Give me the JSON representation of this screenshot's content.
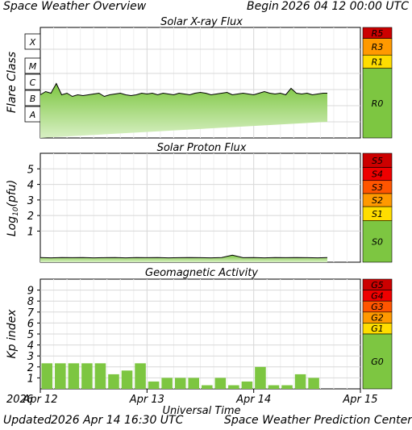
{
  "header": {
    "title": "Space Weather Overview",
    "begin_label": "Begin",
    "begin_value": "2026 04 12 00:00 UTC"
  },
  "footer": {
    "updated_label": "Updated",
    "updated_value": "2026 Apr 14 16:30 UTC",
    "credit": "Space Weather Prediction Center"
  },
  "x_axis": {
    "title": "Universal Time",
    "year": "2026",
    "ticks": [
      "Apr 12",
      "Apr 13",
      "Apr 14",
      "Apr 15"
    ]
  },
  "colors": {
    "green": "#7dc641",
    "green_light": "#d8f0c4",
    "yellow": "#ffdd00",
    "orange": "#ff9900",
    "red_orange": "#ff5500",
    "red": "#ee0000",
    "dark_red": "#cc0000",
    "grid": "#d8d8d8",
    "line": "#000000"
  },
  "chart_data": [
    {
      "type": "line",
      "title": "Solar X-ray Flux",
      "ylabel": "Flare Class",
      "y_scale": "log",
      "y_categories": [
        "A",
        "B",
        "C",
        "M",
        "X"
      ],
      "x_range_days": [
        0,
        3
      ],
      "series": [
        {
          "x": [
            0.0,
            0.05,
            0.1,
            0.15,
            0.2,
            0.25,
            0.3,
            0.35,
            0.4,
            0.45,
            0.5,
            0.55,
            0.6,
            0.65,
            0.7,
            0.75,
            0.8,
            0.85,
            0.9,
            0.95,
            1.0,
            1.05,
            1.1,
            1.15,
            1.2,
            1.25,
            1.3,
            1.35,
            1.4,
            1.45,
            1.5,
            1.55,
            1.6,
            1.65,
            1.7,
            1.75,
            1.8,
            1.85,
            1.9,
            1.95,
            2.0,
            2.05,
            2.1,
            2.15,
            2.2,
            2.25,
            2.3,
            2.35,
            2.4,
            2.45,
            2.5,
            2.55,
            2.6,
            2.65,
            2.69
          ],
          "y": [
            1.2,
            1.4,
            1.3,
            1.9,
            1.2,
            1.3,
            1.1,
            1.2,
            1.15,
            1.2,
            1.25,
            1.3,
            1.1,
            1.2,
            1.25,
            1.3,
            1.2,
            1.15,
            1.2,
            1.3,
            1.25,
            1.3,
            1.2,
            1.3,
            1.25,
            1.2,
            1.3,
            1.25,
            1.2,
            1.3,
            1.35,
            1.3,
            1.2,
            1.25,
            1.3,
            1.35,
            1.2,
            1.25,
            1.3,
            1.25,
            1.2,
            1.3,
            1.4,
            1.3,
            1.25,
            1.3,
            1.2,
            1.6,
            1.3,
            1.25,
            1.3,
            1.2,
            1.25,
            1.3,
            1.3
          ]
        }
      ],
      "scale": {
        "labels": [
          "R5",
          "R3",
          "R1",
          "R0"
        ],
        "colors": [
          "#cc0000",
          "#ff9900",
          "#ffdd00",
          "#7dc641"
        ]
      }
    },
    {
      "type": "line",
      "title": "Solar Proton Flux",
      "ylabel": "Log10(pfu)",
      "ylabel_main": "Log",
      "ylabel_sub": "10",
      "ylabel_paren": "(pfu)",
      "y_range": [
        -1,
        6
      ],
      "y_ticks": [
        1,
        2,
        3,
        4,
        5
      ],
      "x_range_days": [
        0,
        3
      ],
      "series": [
        {
          "x": [
            0.0,
            0.1,
            0.2,
            0.3,
            0.4,
            0.5,
            0.6,
            0.7,
            0.8,
            0.9,
            1.0,
            1.1,
            1.2,
            1.3,
            1.4,
            1.5,
            1.6,
            1.7,
            1.8,
            1.9,
            2.0,
            2.1,
            2.2,
            2.3,
            2.4,
            2.5,
            2.6,
            2.69
          ],
          "y": [
            -0.7,
            -0.72,
            -0.7,
            -0.71,
            -0.7,
            -0.72,
            -0.71,
            -0.7,
            -0.72,
            -0.7,
            -0.71,
            -0.7,
            -0.72,
            -0.71,
            -0.7,
            -0.71,
            -0.72,
            -0.7,
            -0.55,
            -0.71,
            -0.7,
            -0.72,
            -0.7,
            -0.71,
            -0.7,
            -0.71,
            -0.72,
            -0.7
          ]
        }
      ],
      "scale": {
        "labels": [
          "S5",
          "S4",
          "S3",
          "S2",
          "S1",
          "S0"
        ],
        "colors": [
          "#cc0000",
          "#ee0000",
          "#ff5500",
          "#ff9900",
          "#ffdd00",
          "#7dc641"
        ]
      }
    },
    {
      "type": "bar",
      "title": "Geomagnetic Activity",
      "ylabel": "Kp index",
      "y_range": [
        0,
        10
      ],
      "y_ticks": [
        1,
        2,
        3,
        4,
        5,
        6,
        7,
        8,
        9
      ],
      "bar_width_hours": 3,
      "values": [
        2.33,
        2.33,
        2.33,
        2.33,
        2.33,
        1.33,
        1.67,
        2.33,
        0.67,
        1.0,
        1.0,
        1.0,
        0.33,
        1.0,
        0.33,
        0.67,
        2.0,
        0.33,
        0.33,
        1.33,
        1.0
      ],
      "scale": {
        "labels": [
          "G5",
          "G4",
          "G3",
          "G2",
          "G1",
          "G0"
        ],
        "colors": [
          "#cc0000",
          "#ee0000",
          "#ff5500",
          "#ff9900",
          "#ffdd00",
          "#7dc641"
        ]
      }
    }
  ]
}
